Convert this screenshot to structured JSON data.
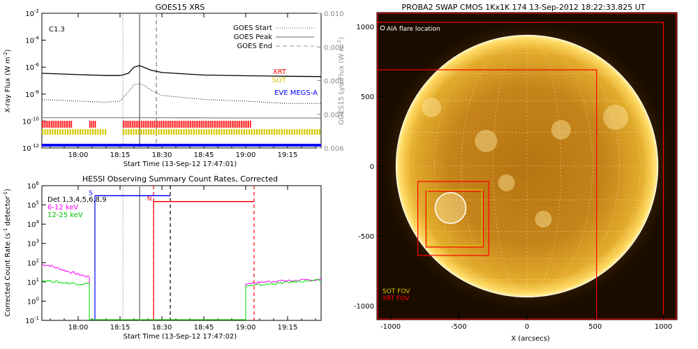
{
  "goes": {
    "title": "GOES15 XRS",
    "class_label": "C1.3",
    "ylabel_left": "X-ray Flux (W m",
    "ylabel_left_sup": "-2",
    "ylabel_right": "GOES15 Lyα Flux (W m",
    "ylabel_right_sup": "-2",
    "xlabel": "Start Time (13-Sep-12 17:47:01)",
    "x_ticks": [
      "18:00",
      "18:15",
      "18:30",
      "18:45",
      "19:00",
      "19:15"
    ],
    "y_ticks_left": [
      {
        "base": "10",
        "exp": "-2"
      },
      {
        "base": "10",
        "exp": "-4"
      },
      {
        "base": "10",
        "exp": "-6"
      },
      {
        "base": "10",
        "exp": "-8"
      },
      {
        "base": "10",
        "exp": "-10"
      },
      {
        "base": "10",
        "exp": "-12"
      }
    ],
    "y_ticks_right": [
      "0.010",
      "0.009",
      "0.008",
      "0.007",
      "0.006"
    ],
    "legend": [
      "GOES Start",
      "GOES Peak",
      "GOES End"
    ],
    "instruments": [
      "XRT",
      "SOT",
      "EVE MEGS-A"
    ],
    "colors": {
      "xrt": "#ff0000",
      "sot": "#d4c800",
      "eve": "#0000ff"
    }
  },
  "hessi": {
    "title": "HESSI Observing Summary Count Rates, Corrected",
    "xlabel": "Start Time (13-Sep-12 17:47:02)",
    "ylabel": "Corrected Count Rate (s",
    "ylabel_sup": "-1",
    "ylabel_tail": " detector",
    "ylabel_tail_sup": "-1",
    "x_ticks": [
      "18:00",
      "18:15",
      "18:30",
      "18:45",
      "19:00",
      "19:15"
    ],
    "y_ticks": [
      {
        "base": "10",
        "exp": "6"
      },
      {
        "base": "10",
        "exp": "5"
      },
      {
        "base": "10",
        "exp": "4"
      },
      {
        "base": "10",
        "exp": "3"
      },
      {
        "base": "10",
        "exp": "2"
      },
      {
        "base": "10",
        "exp": "1"
      },
      {
        "base": "10",
        "exp": "0"
      },
      {
        "base": "10",
        "exp": "-1"
      }
    ],
    "legend": [
      "Det 1,3,4,5,6,8,9",
      "6-12 keV",
      "12-25 keV"
    ],
    "markers": [
      "S",
      "N"
    ],
    "colors": {
      "low": "#ff00ff",
      "high": "#00e000"
    }
  },
  "swap": {
    "title": "PROBA2 SWAP CMOS 1Kx1K 174 13-Sep-2012 18:22:33.825 UT",
    "legend": "AIA flare location",
    "fov_labels": [
      "SOT FOV",
      "XRT FOV"
    ],
    "x_ticks": [
      "-1000",
      "-500",
      "0",
      "500",
      "1000"
    ],
    "y_ticks": [
      "1000",
      "500",
      "0",
      "-500",
      "-1000"
    ],
    "xlabel": "X (arcsecs)"
  },
  "chart_data": [
    {
      "type": "line",
      "title": "GOES15 XRS",
      "xlabel": "Start Time (13-Sep-12 17:47:01)",
      "ylabel": "X-ray Flux (W m^-2)",
      "y2label": "GOES15 Lyα Flux (W m^-2)",
      "ylog": true,
      "ylim": [
        1e-12,
        0.01
      ],
      "y2lim": [
        0.006,
        0.01
      ],
      "xlim": [
        "17:47",
        "19:27"
      ],
      "annotation": "C1.3",
      "flare_times": {
        "start": "18:16",
        "peak": "18:22",
        "end": "18:28"
      },
      "series": [
        {
          "name": "",
          "color": "#000000",
          "style": "solid",
          "x": [
            "17:47",
            "18:00",
            "18:10",
            "18:15",
            "18:18",
            "18:20",
            "18:22",
            "18:24",
            "18:26",
            "18:30",
            "18:45",
            "19:00",
            "19:15",
            "19:27"
          ],
          "y": [
            3.5e-07,
            2.8e-07,
            2.4e-07,
            2.4e-07,
            3.5e-07,
            1e-06,
            1.3e-06,
            9e-07,
            6e-07,
            4e-07,
            2.6e-07,
            2.3e-07,
            2.1e-07,
            2e-07
          ]
        },
        {
          "name": "",
          "color": "#000000",
          "style": "dotted",
          "x": [
            "17:47",
            "18:00",
            "18:10",
            "18:15",
            "18:18",
            "18:20",
            "18:22",
            "18:24",
            "18:26",
            "18:30",
            "18:45",
            "19:00",
            "19:15",
            "19:27"
          ],
          "y": [
            4e-09,
            3e-09,
            2.5e-09,
            3e-09,
            1.5e-08,
            5e-08,
            6e-08,
            4e-08,
            2e-08,
            8e-09,
            4e-09,
            3e-09,
            2e-09,
            2e-09
          ]
        },
        {
          "name": "Lyα",
          "color": "#8a8a8a",
          "style": "solid",
          "x": [
            "17:47",
            "18:30",
            "19:00",
            "19:27"
          ],
          "y": [
            0.0069,
            0.0069,
            0.00689,
            0.00689
          ]
        }
      ],
      "instrument_coverage": [
        {
          "name": "XRT",
          "color": "#ff0000",
          "intervals": [
            [
              "17:47",
              "17:58"
            ],
            [
              "18:04",
              "18:06"
            ],
            [
              "18:16",
              "19:02"
            ]
          ]
        },
        {
          "name": "SOT",
          "color": "#d4c800",
          "intervals": [
            [
              "17:47",
              "18:10"
            ],
            [
              "18:16",
              "19:27"
            ]
          ]
        },
        {
          "name": "EVE MEGS-A",
          "color": "#0000ff",
          "intervals": [
            [
              "17:47",
              "19:27"
            ]
          ]
        }
      ]
    },
    {
      "type": "line",
      "title": "HESSI Observing Summary Count Rates, Corrected",
      "xlabel": "Start Time (13-Sep-12 17:47:02)",
      "ylabel": "Corrected Count Rate (s^-1 detector^-1)",
      "ylog": true,
      "ylim": [
        0.1,
        1000000.0
      ],
      "xlim": [
        "17:47",
        "19:27"
      ],
      "series": [
        {
          "name": "6-12 keV",
          "color": "#ff00ff",
          "x": [
            "17:47",
            "17:50",
            "17:55",
            "18:00",
            "18:04",
            "18:06",
            "19:00",
            "19:10",
            "19:20",
            "19:27"
          ],
          "y": [
            80,
            70,
            40,
            25,
            18,
            0.1,
            8,
            11,
            12,
            13
          ]
        },
        {
          "name": "12-25 keV",
          "color": "#00e000",
          "x": [
            "17:47",
            "17:50",
            "17:55",
            "18:00",
            "18:04",
            "18:06",
            "19:00",
            "19:10",
            "19:20",
            "19:27"
          ],
          "y": [
            12,
            11,
            9,
            8,
            8,
            0.1,
            6,
            8,
            11,
            12
          ]
        }
      ],
      "attenuator_levels": [
        {
          "label": "S",
          "color": "#0000ff",
          "x": [
            "18:06",
            "18:33"
          ],
          "y": 300000.0
        },
        {
          "label": "N",
          "color": "#ff0000",
          "x": [
            "18:27",
            "19:03"
          ],
          "y": 150000.0
        }
      ],
      "vlines": [
        {
          "x": "18:16",
          "color": "#808080",
          "style": "dotted"
        },
        {
          "x": "18:22",
          "color": "#a0a0a0",
          "style": "solid"
        },
        {
          "x": "18:27",
          "color": "#ff0000",
          "style": "dashed"
        },
        {
          "x": "18:33",
          "color": "#000000",
          "style": "dashed"
        },
        {
          "x": "19:03",
          "color": "#ff0000",
          "style": "dashed"
        }
      ]
    },
    {
      "type": "heatmap",
      "title": "PROBA2 SWAP CMOS 1Kx1K 174 13-Sep-2012 18:22:33.825 UT",
      "xlabel": "X (arcsecs)",
      "xlim": [
        -1100,
        1100
      ],
      "ylim": [
        -1100,
        1100
      ],
      "solar_radius": 960,
      "flare_location": {
        "x": -560,
        "y": -300
      },
      "fov_boxes": [
        {
          "label": "XRT FOV",
          "color": "#ff0000",
          "x0": -1100,
          "x1": 1000,
          "y0": -1100,
          "y1": 1030
        },
        {
          "label": "",
          "color": "#ff0000",
          "x0": -1100,
          "x1": 510,
          "y0": -1100,
          "y1": 690
        },
        {
          "label": "",
          "color": "#ff0000",
          "x0": -800,
          "x1": -280,
          "y0": -640,
          "y1": -110
        },
        {
          "label": "",
          "color": "#ff0000",
          "x0": -740,
          "x1": -320,
          "y0": -580,
          "y1": -180
        },
        {
          "label": "SOT FOV",
          "color": "#d4c800",
          "x0": -730,
          "x1": -330,
          "y0": -570,
          "y1": -170
        }
      ]
    }
  ]
}
